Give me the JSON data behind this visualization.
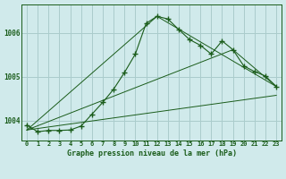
{
  "title": "Graphe pression niveau de la mer (hPa)",
  "bg_color": "#d0eaeb",
  "grid_color": "#aacccc",
  "line_color": "#1a5c1a",
  "x_labels": [
    "0",
    "1",
    "2",
    "3",
    "4",
    "5",
    "6",
    "7",
    "8",
    "9",
    "10",
    "11",
    "12",
    "13",
    "14",
    "15",
    "16",
    "17",
    "18",
    "19",
    "20",
    "21",
    "22",
    "23"
  ],
  "xlim": [
    -0.5,
    23.5
  ],
  "ylim": [
    1003.55,
    1006.65
  ],
  "yticks": [
    1004,
    1005,
    1006
  ],
  "main_line_x": [
    0,
    1,
    2,
    3,
    4,
    5,
    6,
    7,
    8,
    9,
    10,
    11,
    12,
    13,
    14,
    15,
    16,
    17,
    18,
    19,
    20,
    21,
    22,
    23
  ],
  "main_line_y": [
    1003.9,
    1003.75,
    1003.78,
    1003.78,
    1003.79,
    1003.88,
    1004.15,
    1004.42,
    1004.72,
    1005.1,
    1005.52,
    1006.22,
    1006.38,
    1006.32,
    1006.08,
    1005.85,
    1005.72,
    1005.52,
    1005.82,
    1005.62,
    1005.25,
    1005.12,
    1005.02,
    1004.78
  ],
  "line2_x": [
    0,
    23
  ],
  "line2_y": [
    1003.79,
    1004.58
  ],
  "line3_x": [
    0,
    19,
    23
  ],
  "line3_y": [
    1003.79,
    1005.62,
    1004.78
  ],
  "line4_x": [
    0,
    12,
    23
  ],
  "line4_y": [
    1003.79,
    1006.38,
    1004.78
  ],
  "tick_fontsize": 5.0,
  "ylabel_fontsize": 5.5,
  "xlabel_fontsize": 6.0
}
